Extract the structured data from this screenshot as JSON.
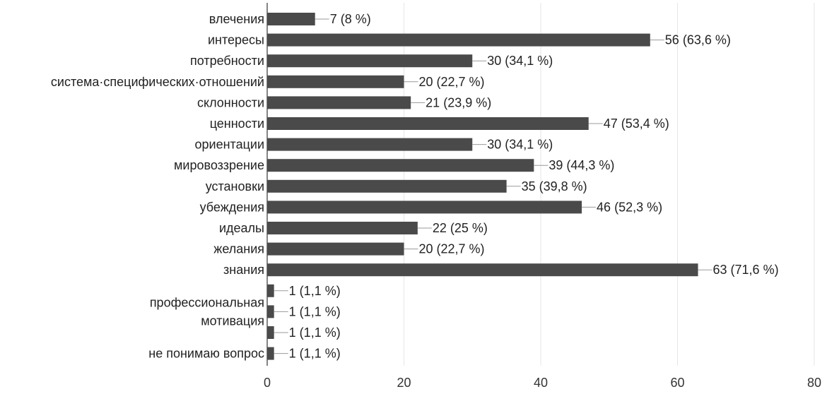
{
  "chart_data": {
    "type": "bar",
    "orientation": "horizontal",
    "categories": [
      "влечения",
      "интересы",
      "потребности",
      "система·специфических·отношений",
      "склонности",
      "ценности",
      "ориентации",
      "мировоззрение",
      "установки",
      "убеждения",
      "идеалы",
      "желания",
      "знания",
      "",
      "",
      "",
      "не понимаю вопрос"
    ],
    "values": [
      7,
      56,
      30,
      20,
      21,
      47,
      30,
      39,
      35,
      46,
      22,
      20,
      63,
      1,
      1,
      1,
      1
    ],
    "value_labels": [
      "7 (8 %)",
      "56 (63,6 %)",
      "30 (34,1 %)",
      "20 (22,7 %)",
      "21 (23,9 %)",
      "47 (53,4 %)",
      "30 (34,1 %)",
      "39 (44,3 %)",
      "35 (39,8 %)",
      "46 (52,3 %)",
      "22 (25 %)",
      "20 (22,7 %)",
      "63 (71,6 %)",
      "1 (1,1 %)",
      "1 (1,1 %)",
      "1 (1,1 %)",
      "1 (1,1 %)"
    ],
    "group_labels": [
      {
        "rows": [
          13,
          14,
          15
        ],
        "lines": [
          "профессиональная",
          "мотивация"
        ]
      }
    ],
    "xlim": [
      0,
      80
    ],
    "xticks": [
      0,
      20,
      40,
      60,
      80
    ],
    "grid": true,
    "colors": {
      "bar": "#4a4a4a",
      "grid": "#e6e6e6",
      "leader": "#9a9a9a",
      "axis": "#333333"
    }
  }
}
